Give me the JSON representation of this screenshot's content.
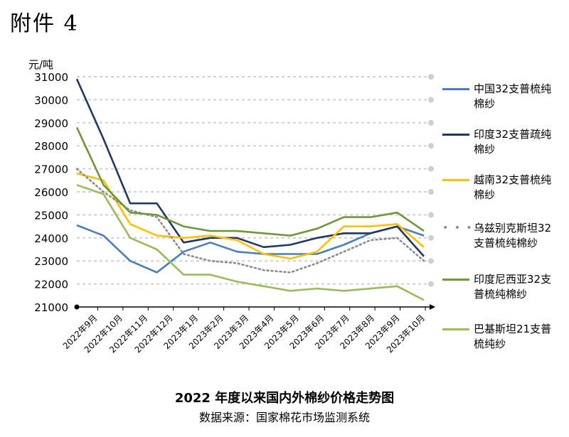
{
  "page": {
    "title": "附件 4"
  },
  "chart_data": {
    "type": "line",
    "title": "2022 年度以来国内外棉纱价格走势图",
    "source": "数据来源：国家棉花市场监测系统",
    "ylabel": "元/吨",
    "xlabel": "",
    "ylim": [
      21000,
      31000
    ],
    "yticks": [
      21000,
      22000,
      23000,
      24000,
      25000,
      26000,
      27000,
      28000,
      29000,
      30000,
      31000
    ],
    "categories": [
      "2022年9月",
      "2022年10月",
      "2022年11月",
      "2022年12月",
      "2023年1月",
      "2023年2月",
      "2023年3月",
      "2023年4月",
      "2023年5月",
      "2023年6月",
      "2023年7月",
      "2023年8月",
      "2023年9月",
      "2023年10月"
    ],
    "grid": true,
    "legend_position": "right",
    "series": [
      {
        "name": "中国32支普梳纯棉纱",
        "color": "#4a7ebb",
        "style": "solid",
        "values": [
          24550,
          24100,
          23000,
          22500,
          23400,
          23800,
          23400,
          23300,
          23300,
          23300,
          23700,
          24200,
          24500,
          24100
        ]
      },
      {
        "name": "印度32支普疏纯棉纱",
        "color": "#1f3864",
        "style": "solid",
        "values": [
          30900,
          28300,
          25500,
          25500,
          23800,
          24000,
          24000,
          23600,
          23700,
          24000,
          24200,
          24200,
          24500,
          23200
        ]
      },
      {
        "name": "越南32支普梳纯棉纱",
        "color": "#ffc000",
        "style": "solid",
        "marker": "#1f3864",
        "values": [
          26800,
          26500,
          24600,
          24100,
          24000,
          24100,
          23900,
          23300,
          23100,
          23400,
          24500,
          24500,
          24600,
          23600
        ]
      },
      {
        "name": "乌兹别克斯坦32支普梳纯棉纱",
        "color": "#8c8c8c",
        "style": "dotted",
        "values": [
          27000,
          26000,
          25200,
          24900,
          23300,
          23000,
          22900,
          22600,
          22500,
          22900,
          23400,
          23900,
          24000,
          23000
        ]
      },
      {
        "name": "印度尼西亚32支普梳纯棉纱",
        "color": "#70963c",
        "style": "solid",
        "values": [
          28800,
          26300,
          25100,
          25000,
          24500,
          24300,
          24300,
          24200,
          24100,
          24400,
          24900,
          24900,
          25100,
          24300
        ]
      },
      {
        "name": "巴基斯坦21支普梳纯纱",
        "color": "#9bbb59",
        "style": "solid",
        "values": [
          26300,
          25900,
          24000,
          23500,
          22400,
          22400,
          22100,
          21900,
          21700,
          21800,
          21700,
          21800,
          21900,
          21300
        ]
      }
    ]
  }
}
